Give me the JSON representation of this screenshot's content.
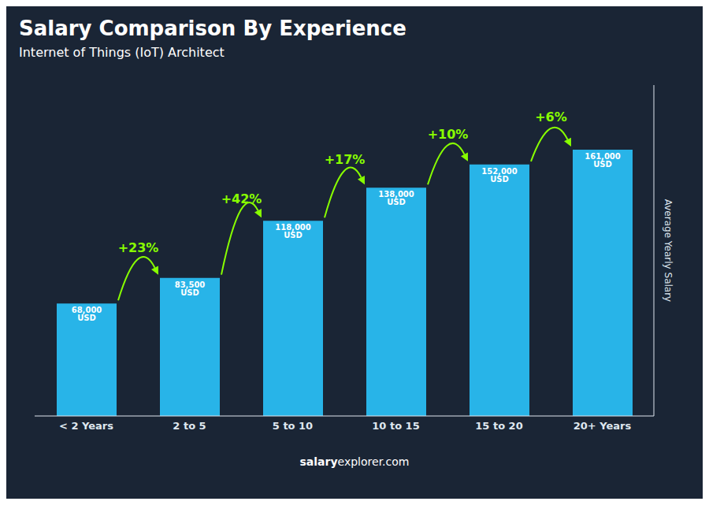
{
  "chart_data": {
    "type": "bar",
    "title": "Salary Comparison By Experience",
    "subtitle": "Internet of Things (IoT) Architect",
    "categories": [
      "< 2 Years",
      "2 to 5",
      "5 to 10",
      "10 to 15",
      "15 to 20",
      "20+ Years"
    ],
    "values": [
      68000,
      83500,
      118000,
      138000,
      152000,
      161000
    ],
    "value_labels": [
      "68,000 USD",
      "83,500 USD",
      "118,000 USD",
      "138,000 USD",
      "152,000 USD",
      "161,000 USD"
    ],
    "data_labels": true,
    "color": "#28b4e8",
    "ylabel": "Average Yearly Salary",
    "ylim": [
      0,
      200000
    ],
    "tick_labels": "x",
    "grid": false,
    "annotations": [
      "+23%",
      "+42%",
      "+17%",
      "+10%",
      "+6%"
    ],
    "footer": [
      "salary",
      "explorer.com"
    ]
  }
}
